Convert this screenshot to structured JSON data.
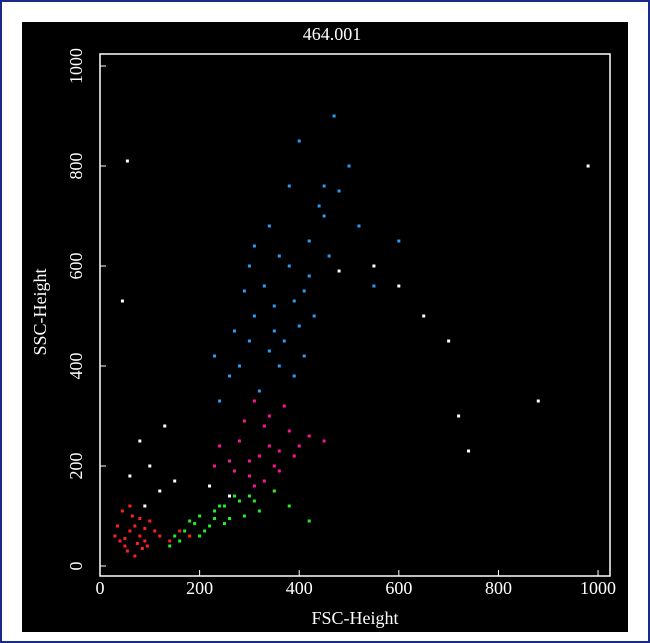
{
  "chart_data": {
    "type": "scatter",
    "title": "464.001",
    "x_label": "FSC-Height",
    "y_label": "SSC-Height",
    "xlim": [
      0,
      1024
    ],
    "ylim": [
      -20,
      1024
    ],
    "xticks": [
      0,
      200,
      400,
      600,
      800,
      1000
    ],
    "yticks": [
      0,
      200,
      400,
      600,
      800,
      1000
    ],
    "series": [
      {
        "color": "#2a9df4",
        "x": [
          380,
          350,
          420,
          300,
          450,
          330,
          400,
          360,
          280,
          480,
          310,
          420,
          390,
          340,
          260,
          500,
          370,
          440,
          290,
          410,
          350,
          460,
          320,
          380,
          240,
          520,
          430,
          300,
          360,
          400,
          550,
          270,
          470,
          340,
          410,
          600,
          230,
          390,
          450,
          310
        ],
        "y": [
          600,
          520,
          650,
          450,
          700,
          560,
          480,
          620,
          400,
          750,
          500,
          580,
          530,
          680,
          380,
          800,
          450,
          720,
          550,
          420,
          470,
          620,
          350,
          760,
          330,
          680,
          500,
          600,
          400,
          850,
          560,
          470,
          900,
          430,
          550,
          650,
          420,
          380,
          760,
          640
        ]
      },
      {
        "color": "#ff1493",
        "x": [
          320,
          280,
          350,
          300,
          380,
          260,
          340,
          400,
          310,
          290,
          360,
          330,
          240,
          420,
          370,
          300,
          350,
          270,
          390,
          330,
          450,
          310,
          230,
          360,
          340
        ],
        "y": [
          220,
          250,
          200,
          180,
          270,
          210,
          300,
          240,
          160,
          290,
          230,
          170,
          240,
          260,
          320,
          210,
          150,
          190,
          220,
          280,
          250,
          330,
          200,
          190,
          240
        ]
      },
      {
        "color": "#22ee22",
        "x": [
          150,
          180,
          200,
          220,
          250,
          170,
          230,
          280,
          300,
          260,
          210,
          190,
          240,
          320,
          350,
          160,
          270,
          290,
          380,
          200,
          230,
          310,
          250,
          420,
          140
        ],
        "y": [
          60,
          90,
          100,
          80,
          120,
          70,
          110,
          130,
          140,
          95,
          70,
          85,
          120,
          110,
          150,
          50,
          140,
          100,
          120,
          60,
          95,
          130,
          85,
          90,
          40
        ]
      },
      {
        "color": "#ff2020",
        "x": [
          40,
          60,
          80,
          50,
          70,
          90,
          100,
          30,
          55,
          75,
          110,
          65,
          45,
          85,
          120,
          95,
          35,
          140,
          160,
          70,
          50,
          180,
          60,
          90,
          80
        ],
        "y": [
          50,
          70,
          60,
          40,
          80,
          50,
          90,
          60,
          30,
          45,
          70,
          100,
          110,
          35,
          60,
          40,
          80,
          50,
          70,
          20,
          55,
          60,
          120,
          75,
          95
        ]
      },
      {
        "color": "#ffffff",
        "x": [
          60,
          100,
          120,
          80,
          150,
          90,
          220,
          260,
          650,
          700,
          720,
          880,
          980,
          55,
          45,
          550,
          600,
          480,
          740,
          130
        ],
        "y": [
          180,
          200,
          150,
          250,
          170,
          120,
          160,
          140,
          500,
          450,
          300,
          330,
          800,
          810,
          530,
          600,
          560,
          590,
          230,
          280
        ]
      }
    ]
  }
}
